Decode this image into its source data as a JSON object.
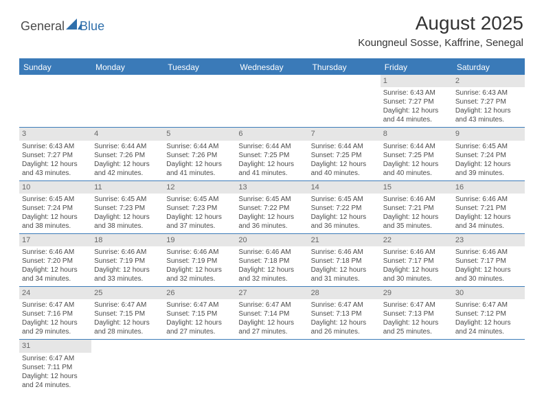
{
  "logo": {
    "text1": "General",
    "text2": "Blue",
    "icon_color": "#2f6fab"
  },
  "header": {
    "month_title": "August 2025",
    "location": "Koungneul Sosse, Kaffrine, Senegal"
  },
  "colors": {
    "accent": "#3a7ab8",
    "daynum_bg": "#e6e6e6"
  },
  "day_headers": [
    "Sunday",
    "Monday",
    "Tuesday",
    "Wednesday",
    "Thursday",
    "Friday",
    "Saturday"
  ],
  "weeks": [
    [
      null,
      null,
      null,
      null,
      null,
      {
        "n": "1",
        "sr": "Sunrise: 6:43 AM",
        "ss": "Sunset: 7:27 PM",
        "dl": "Daylight: 12 hours and 44 minutes."
      },
      {
        "n": "2",
        "sr": "Sunrise: 6:43 AM",
        "ss": "Sunset: 7:27 PM",
        "dl": "Daylight: 12 hours and 43 minutes."
      }
    ],
    [
      {
        "n": "3",
        "sr": "Sunrise: 6:43 AM",
        "ss": "Sunset: 7:27 PM",
        "dl": "Daylight: 12 hours and 43 minutes."
      },
      {
        "n": "4",
        "sr": "Sunrise: 6:44 AM",
        "ss": "Sunset: 7:26 PM",
        "dl": "Daylight: 12 hours and 42 minutes."
      },
      {
        "n": "5",
        "sr": "Sunrise: 6:44 AM",
        "ss": "Sunset: 7:26 PM",
        "dl": "Daylight: 12 hours and 41 minutes."
      },
      {
        "n": "6",
        "sr": "Sunrise: 6:44 AM",
        "ss": "Sunset: 7:25 PM",
        "dl": "Daylight: 12 hours and 41 minutes."
      },
      {
        "n": "7",
        "sr": "Sunrise: 6:44 AM",
        "ss": "Sunset: 7:25 PM",
        "dl": "Daylight: 12 hours and 40 minutes."
      },
      {
        "n": "8",
        "sr": "Sunrise: 6:44 AM",
        "ss": "Sunset: 7:25 PM",
        "dl": "Daylight: 12 hours and 40 minutes."
      },
      {
        "n": "9",
        "sr": "Sunrise: 6:45 AM",
        "ss": "Sunset: 7:24 PM",
        "dl": "Daylight: 12 hours and 39 minutes."
      }
    ],
    [
      {
        "n": "10",
        "sr": "Sunrise: 6:45 AM",
        "ss": "Sunset: 7:24 PM",
        "dl": "Daylight: 12 hours and 38 minutes."
      },
      {
        "n": "11",
        "sr": "Sunrise: 6:45 AM",
        "ss": "Sunset: 7:23 PM",
        "dl": "Daylight: 12 hours and 38 minutes."
      },
      {
        "n": "12",
        "sr": "Sunrise: 6:45 AM",
        "ss": "Sunset: 7:23 PM",
        "dl": "Daylight: 12 hours and 37 minutes."
      },
      {
        "n": "13",
        "sr": "Sunrise: 6:45 AM",
        "ss": "Sunset: 7:22 PM",
        "dl": "Daylight: 12 hours and 36 minutes."
      },
      {
        "n": "14",
        "sr": "Sunrise: 6:45 AM",
        "ss": "Sunset: 7:22 PM",
        "dl": "Daylight: 12 hours and 36 minutes."
      },
      {
        "n": "15",
        "sr": "Sunrise: 6:46 AM",
        "ss": "Sunset: 7:21 PM",
        "dl": "Daylight: 12 hours and 35 minutes."
      },
      {
        "n": "16",
        "sr": "Sunrise: 6:46 AM",
        "ss": "Sunset: 7:21 PM",
        "dl": "Daylight: 12 hours and 34 minutes."
      }
    ],
    [
      {
        "n": "17",
        "sr": "Sunrise: 6:46 AM",
        "ss": "Sunset: 7:20 PM",
        "dl": "Daylight: 12 hours and 34 minutes."
      },
      {
        "n": "18",
        "sr": "Sunrise: 6:46 AM",
        "ss": "Sunset: 7:19 PM",
        "dl": "Daylight: 12 hours and 33 minutes."
      },
      {
        "n": "19",
        "sr": "Sunrise: 6:46 AM",
        "ss": "Sunset: 7:19 PM",
        "dl": "Daylight: 12 hours and 32 minutes."
      },
      {
        "n": "20",
        "sr": "Sunrise: 6:46 AM",
        "ss": "Sunset: 7:18 PM",
        "dl": "Daylight: 12 hours and 32 minutes."
      },
      {
        "n": "21",
        "sr": "Sunrise: 6:46 AM",
        "ss": "Sunset: 7:18 PM",
        "dl": "Daylight: 12 hours and 31 minutes."
      },
      {
        "n": "22",
        "sr": "Sunrise: 6:46 AM",
        "ss": "Sunset: 7:17 PM",
        "dl": "Daylight: 12 hours and 30 minutes."
      },
      {
        "n": "23",
        "sr": "Sunrise: 6:46 AM",
        "ss": "Sunset: 7:17 PM",
        "dl": "Daylight: 12 hours and 30 minutes."
      }
    ],
    [
      {
        "n": "24",
        "sr": "Sunrise: 6:47 AM",
        "ss": "Sunset: 7:16 PM",
        "dl": "Daylight: 12 hours and 29 minutes."
      },
      {
        "n": "25",
        "sr": "Sunrise: 6:47 AM",
        "ss": "Sunset: 7:15 PM",
        "dl": "Daylight: 12 hours and 28 minutes."
      },
      {
        "n": "26",
        "sr": "Sunrise: 6:47 AM",
        "ss": "Sunset: 7:15 PM",
        "dl": "Daylight: 12 hours and 27 minutes."
      },
      {
        "n": "27",
        "sr": "Sunrise: 6:47 AM",
        "ss": "Sunset: 7:14 PM",
        "dl": "Daylight: 12 hours and 27 minutes."
      },
      {
        "n": "28",
        "sr": "Sunrise: 6:47 AM",
        "ss": "Sunset: 7:13 PM",
        "dl": "Daylight: 12 hours and 26 minutes."
      },
      {
        "n": "29",
        "sr": "Sunrise: 6:47 AM",
        "ss": "Sunset: 7:13 PM",
        "dl": "Daylight: 12 hours and 25 minutes."
      },
      {
        "n": "30",
        "sr": "Sunrise: 6:47 AM",
        "ss": "Sunset: 7:12 PM",
        "dl": "Daylight: 12 hours and 24 minutes."
      }
    ],
    [
      {
        "n": "31",
        "sr": "Sunrise: 6:47 AM",
        "ss": "Sunset: 7:11 PM",
        "dl": "Daylight: 12 hours and 24 minutes."
      },
      null,
      null,
      null,
      null,
      null,
      null
    ]
  ]
}
